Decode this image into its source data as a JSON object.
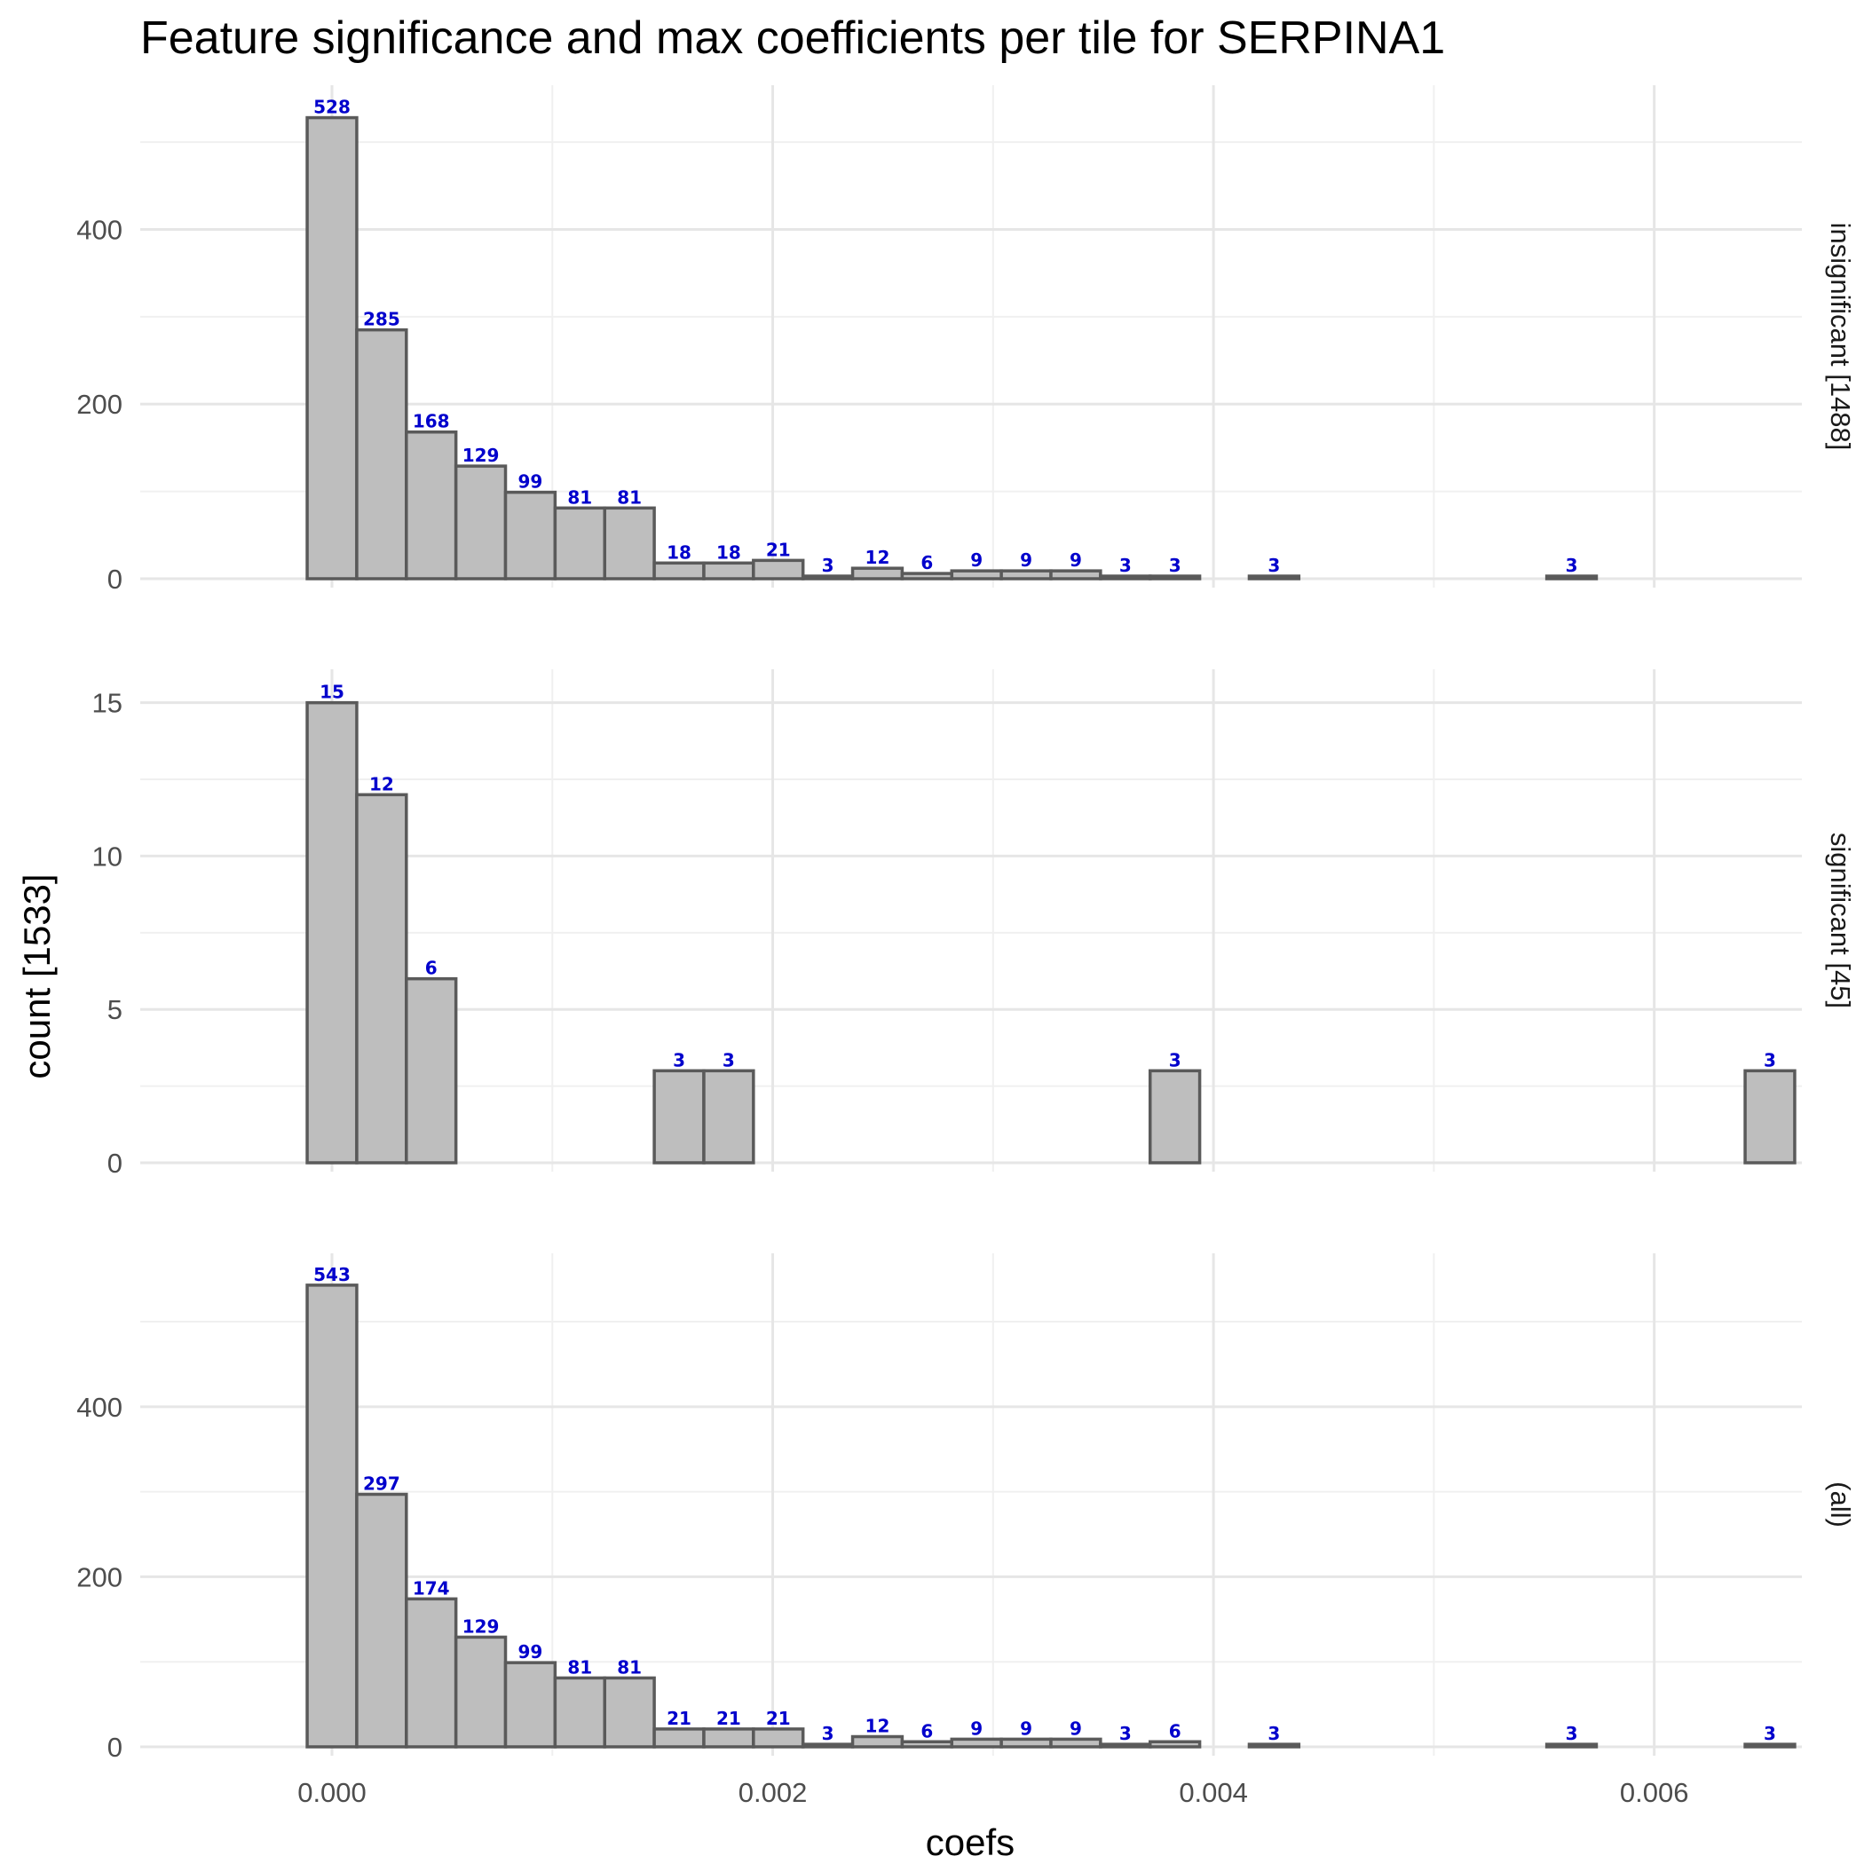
{
  "chart_data": {
    "type": "bar",
    "title": "Feature significance and max coefficients per tile for SERPINA1",
    "xlabel": "coefs",
    "ylabel": "count [1533]",
    "bin_width": 0.000225,
    "x_ticks": [
      0.0,
      0.002,
      0.004,
      0.006
    ],
    "x_tick_labels": [
      "0.000",
      "0.002",
      "0.004",
      "0.006"
    ],
    "xlim": [
      -0.00087,
      0.00667
    ],
    "label_color": "#0000cc",
    "bar_fill": "#bebebe",
    "bar_outline": "#5a5a5a",
    "grid": true,
    "panels": [
      {
        "label": "insignificant [1488]",
        "ylim": [
          0,
          555
        ],
        "y_ticks": [
          0,
          200,
          400
        ],
        "y_tick_labels": [
          "0",
          "200",
          "400"
        ],
        "bins": [
          {
            "x": 0.0,
            "count": 528
          },
          {
            "x": 0.000225,
            "count": 285
          },
          {
            "x": 0.00045,
            "count": 168
          },
          {
            "x": 0.000675,
            "count": 129
          },
          {
            "x": 0.0009,
            "count": 99
          },
          {
            "x": 0.001125,
            "count": 81
          },
          {
            "x": 0.00135,
            "count": 81
          },
          {
            "x": 0.001575,
            "count": 18
          },
          {
            "x": 0.0018,
            "count": 18
          },
          {
            "x": 0.002025,
            "count": 21
          },
          {
            "x": 0.00225,
            "count": 3
          },
          {
            "x": 0.002475,
            "count": 12
          },
          {
            "x": 0.0027,
            "count": 6
          },
          {
            "x": 0.002925,
            "count": 9
          },
          {
            "x": 0.00315,
            "count": 9
          },
          {
            "x": 0.003375,
            "count": 9
          },
          {
            "x": 0.0036,
            "count": 3
          },
          {
            "x": 0.003825,
            "count": 3
          },
          {
            "x": 0.00405,
            "count": 0
          },
          {
            "x": 0.004275,
            "count": 3
          },
          {
            "x": 0.0045,
            "count": 0
          },
          {
            "x": 0.004725,
            "count": 0
          },
          {
            "x": 0.00495,
            "count": 0
          },
          {
            "x": 0.005175,
            "count": 0
          },
          {
            "x": 0.0054,
            "count": 0
          },
          {
            "x": 0.005625,
            "count": 3
          },
          {
            "x": 0.00585,
            "count": 0
          },
          {
            "x": 0.006075,
            "count": 0
          },
          {
            "x": 0.0063,
            "count": 0
          },
          {
            "x": 0.006525,
            "count": 0
          }
        ]
      },
      {
        "label": "significant [45]",
        "ylim": [
          0,
          15.8
        ],
        "y_ticks": [
          0,
          5,
          10,
          15
        ],
        "y_tick_labels": [
          "0",
          "5",
          "10",
          "15"
        ],
        "bins": [
          {
            "x": 0.0,
            "count": 15
          },
          {
            "x": 0.000225,
            "count": 12
          },
          {
            "x": 0.00045,
            "count": 6
          },
          {
            "x": 0.000675,
            "count": 0
          },
          {
            "x": 0.0009,
            "count": 0
          },
          {
            "x": 0.001125,
            "count": 0
          },
          {
            "x": 0.00135,
            "count": 0
          },
          {
            "x": 0.001575,
            "count": 3
          },
          {
            "x": 0.0018,
            "count": 3
          },
          {
            "x": 0.002025,
            "count": 0
          },
          {
            "x": 0.00225,
            "count": 0
          },
          {
            "x": 0.002475,
            "count": 0
          },
          {
            "x": 0.0027,
            "count": 0
          },
          {
            "x": 0.002925,
            "count": 0
          },
          {
            "x": 0.00315,
            "count": 0
          },
          {
            "x": 0.003375,
            "count": 0
          },
          {
            "x": 0.0036,
            "count": 0
          },
          {
            "x": 0.003825,
            "count": 3
          },
          {
            "x": 0.00405,
            "count": 0
          },
          {
            "x": 0.004275,
            "count": 0
          },
          {
            "x": 0.0045,
            "count": 0
          },
          {
            "x": 0.004725,
            "count": 0
          },
          {
            "x": 0.00495,
            "count": 0
          },
          {
            "x": 0.005175,
            "count": 0
          },
          {
            "x": 0.0054,
            "count": 0
          },
          {
            "x": 0.005625,
            "count": 0
          },
          {
            "x": 0.00585,
            "count": 0
          },
          {
            "x": 0.006075,
            "count": 0
          },
          {
            "x": 0.0063,
            "count": 0
          },
          {
            "x": 0.006525,
            "count": 3
          }
        ]
      },
      {
        "label": "(all)",
        "ylim": [
          0,
          570
        ],
        "y_ticks": [
          0,
          200,
          400
        ],
        "y_tick_labels": [
          "0",
          "200",
          "400"
        ],
        "bins": [
          {
            "x": 0.0,
            "count": 543
          },
          {
            "x": 0.000225,
            "count": 297
          },
          {
            "x": 0.00045,
            "count": 174
          },
          {
            "x": 0.000675,
            "count": 129
          },
          {
            "x": 0.0009,
            "count": 99
          },
          {
            "x": 0.001125,
            "count": 81
          },
          {
            "x": 0.00135,
            "count": 81
          },
          {
            "x": 0.001575,
            "count": 21
          },
          {
            "x": 0.0018,
            "count": 21
          },
          {
            "x": 0.002025,
            "count": 21
          },
          {
            "x": 0.00225,
            "count": 3
          },
          {
            "x": 0.002475,
            "count": 12
          },
          {
            "x": 0.0027,
            "count": 6
          },
          {
            "x": 0.002925,
            "count": 9
          },
          {
            "x": 0.00315,
            "count": 9
          },
          {
            "x": 0.003375,
            "count": 9
          },
          {
            "x": 0.0036,
            "count": 3
          },
          {
            "x": 0.003825,
            "count": 6
          },
          {
            "x": 0.00405,
            "count": 0
          },
          {
            "x": 0.004275,
            "count": 3
          },
          {
            "x": 0.0045,
            "count": 0
          },
          {
            "x": 0.004725,
            "count": 0
          },
          {
            "x": 0.00495,
            "count": 0
          },
          {
            "x": 0.005175,
            "count": 0
          },
          {
            "x": 0.0054,
            "count": 0
          },
          {
            "x": 0.005625,
            "count": 3
          },
          {
            "x": 0.00585,
            "count": 0
          },
          {
            "x": 0.006075,
            "count": 0
          },
          {
            "x": 0.0063,
            "count": 0
          },
          {
            "x": 0.006525,
            "count": 3
          }
        ]
      }
    ]
  }
}
